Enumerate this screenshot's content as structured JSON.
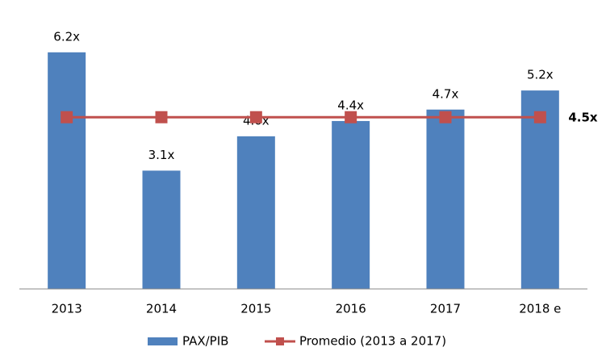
{
  "chart_data": {
    "type": "bar",
    "categories": [
      "2013",
      "2014",
      "2015",
      "2016",
      "2017",
      "2018 e"
    ],
    "series": [
      {
        "name": "PAX/PIB",
        "type": "bar",
        "color": "#4f81bd",
        "values": [
          6.2,
          3.1,
          4.0,
          4.4,
          4.7,
          5.2
        ],
        "value_labels": [
          "6.2x",
          "3.1x",
          "4.0x",
          "4.4x",
          "4.7x",
          "5.2x"
        ]
      },
      {
        "name": "Promedio (2013 a 2017)",
        "type": "line",
        "color": "#c0504d",
        "values": [
          4.5,
          4.5,
          4.5,
          4.5,
          4.5,
          4.5
        ],
        "value_labels": [
          null,
          null,
          null,
          null,
          null,
          "4.5x"
        ]
      }
    ],
    "ylim": [
      0,
      7
    ],
    "legend": "bottom"
  }
}
